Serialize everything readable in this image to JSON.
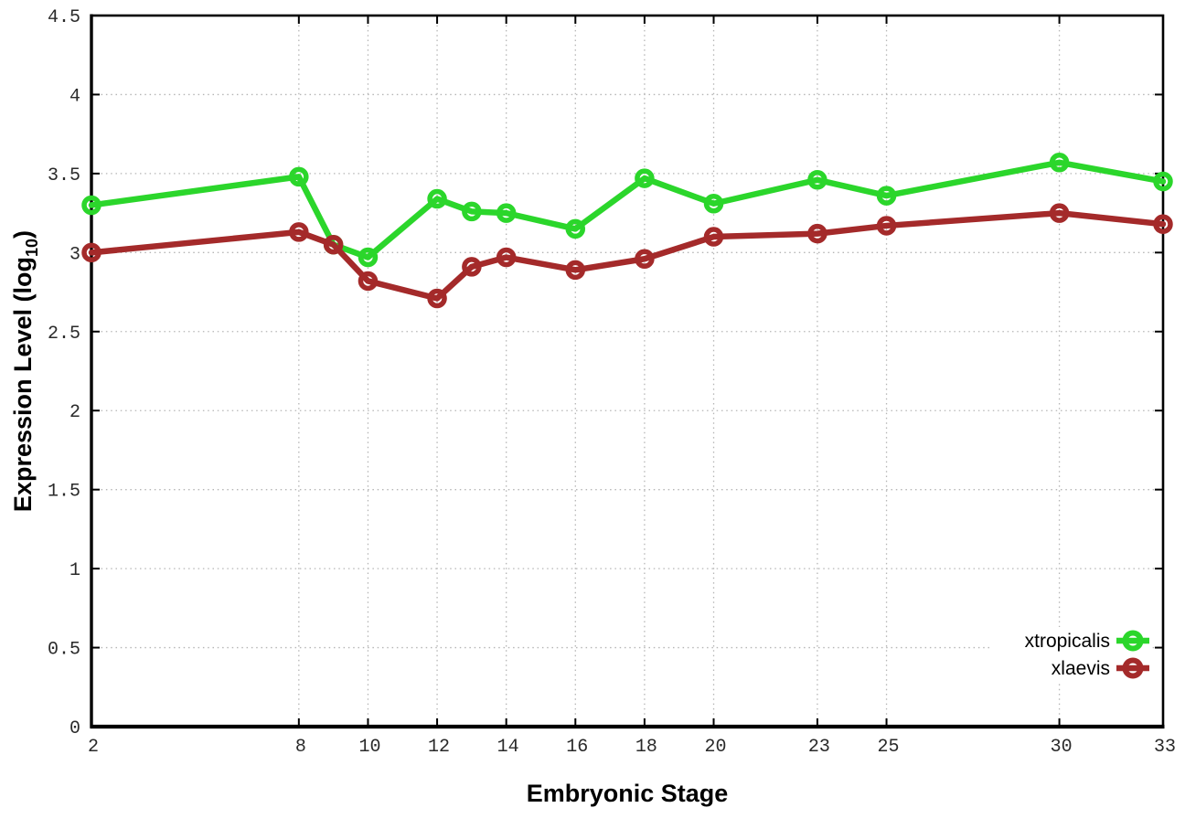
{
  "chart_data": {
    "type": "line",
    "title": "",
    "xlabel": "Embryonic Stage",
    "ylabel": "Expression Level (log10)",
    "ylabel_parts": {
      "main": "Expression Level (log",
      "sub": "10",
      "end": ")"
    },
    "xlim": [
      2,
      33
    ],
    "ylim": [
      0,
      4.5
    ],
    "grid": true,
    "grid_style": "dotted",
    "legend_position": "bottom-right-inside",
    "x": [
      2,
      8,
      9,
      10,
      12,
      13,
      14,
      16,
      18,
      20,
      23,
      25,
      30,
      33
    ],
    "xtick_values": [
      2,
      8,
      10,
      12,
      14,
      16,
      18,
      20,
      23,
      25,
      30,
      33
    ],
    "xtick_labels": [
      "2",
      "8",
      "10",
      "12",
      "14",
      "16",
      "18",
      "20",
      "23",
      "25",
      "30",
      "33"
    ],
    "ytick_values": [
      0,
      0.5,
      1,
      1.5,
      2,
      2.5,
      3,
      3.5,
      4,
      4.5
    ],
    "ytick_labels": [
      "0",
      "0.5",
      "1",
      "1.5",
      "2",
      "2.5",
      "3",
      "3.5",
      "4",
      "4.5"
    ],
    "series": [
      {
        "name": "xtropicalis",
        "color": "#2bd62b",
        "marker": "open-circle",
        "values": [
          3.3,
          3.48,
          3.05,
          2.97,
          3.34,
          3.26,
          3.25,
          3.15,
          3.47,
          3.31,
          3.46,
          3.36,
          3.57,
          3.45
        ]
      },
      {
        "name": "xlaevis",
        "color": "#a42a2a",
        "marker": "open-circle",
        "values": [
          3.0,
          3.13,
          3.05,
          2.82,
          2.71,
          2.91,
          2.97,
          2.89,
          2.96,
          3.1,
          3.12,
          3.17,
          3.25,
          3.18
        ]
      }
    ]
  },
  "styles": {
    "background": "#ffffff",
    "grid_color": "#b5b5b5",
    "axis_color": "#000000",
    "tick_label_color": "#2a2a2a",
    "legend_background": "#ffffff"
  }
}
